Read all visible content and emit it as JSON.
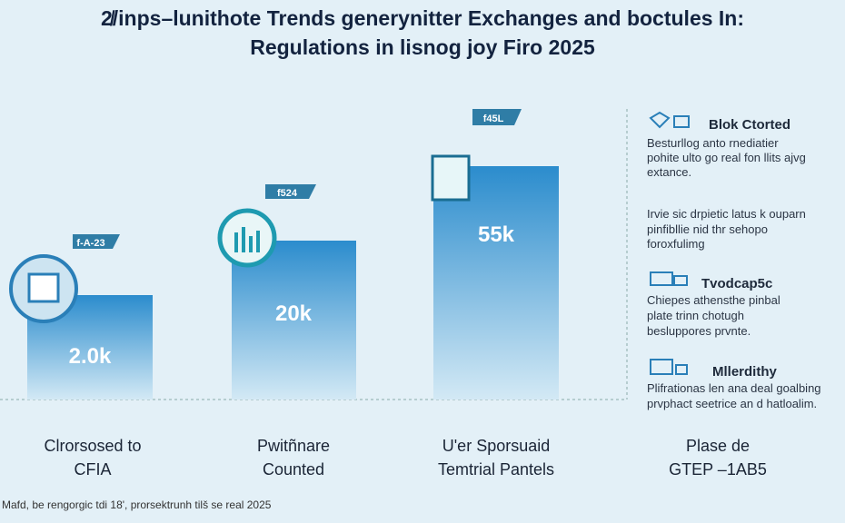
{
  "header": {
    "title": [
      "2̸/inps–lunithote Trends generynitter Exchanges and boctules In:",
      "Regulations in lisnog joy Firo 2025"
    ]
  },
  "columns": [
    {
      "tag": "f-A-23",
      "value": "2.0k",
      "label": [
        "Clrorsosed to",
        "CFIA"
      ]
    },
    {
      "tag": "f524",
      "value": "20k",
      "label": [
        "Pwitñnare",
        "Counted"
      ]
    },
    {
      "tag": "f45L",
      "value": "55k",
      "label": [
        "U'er Sporsuaid",
        "Temtrial Pantels"
      ]
    },
    {
      "label": [
        "Plase de",
        "GTEP –1AB5"
      ]
    }
  ],
  "sidebar": [
    {
      "heading": "Blok Ctorted",
      "lines": [
        "Besturllog anto rnediatier",
        "pohite ulto go real fon llits ajvg",
        "extance."
      ]
    },
    {
      "lines": [
        "Irvie sic drpietic latus k ouparn",
        "pinfibllie nid thr sehopo",
        "foroxfulimg"
      ]
    },
    {
      "heading": "Tvodcap5c",
      "lines": [
        "Chiepes athensthe pinbal",
        "plate trinn chotugh",
        "besluppores prvnte."
      ]
    },
    {
      "heading": "Mllerdithy",
      "lines": [
        "Plifrationas len ana deal goalbing",
        "prvphact seetrice an d hatloalim."
      ]
    }
  ],
  "footer": "Mafd, be rengorgic tdi 18', prorsektrunh tilš se real 2025"
}
